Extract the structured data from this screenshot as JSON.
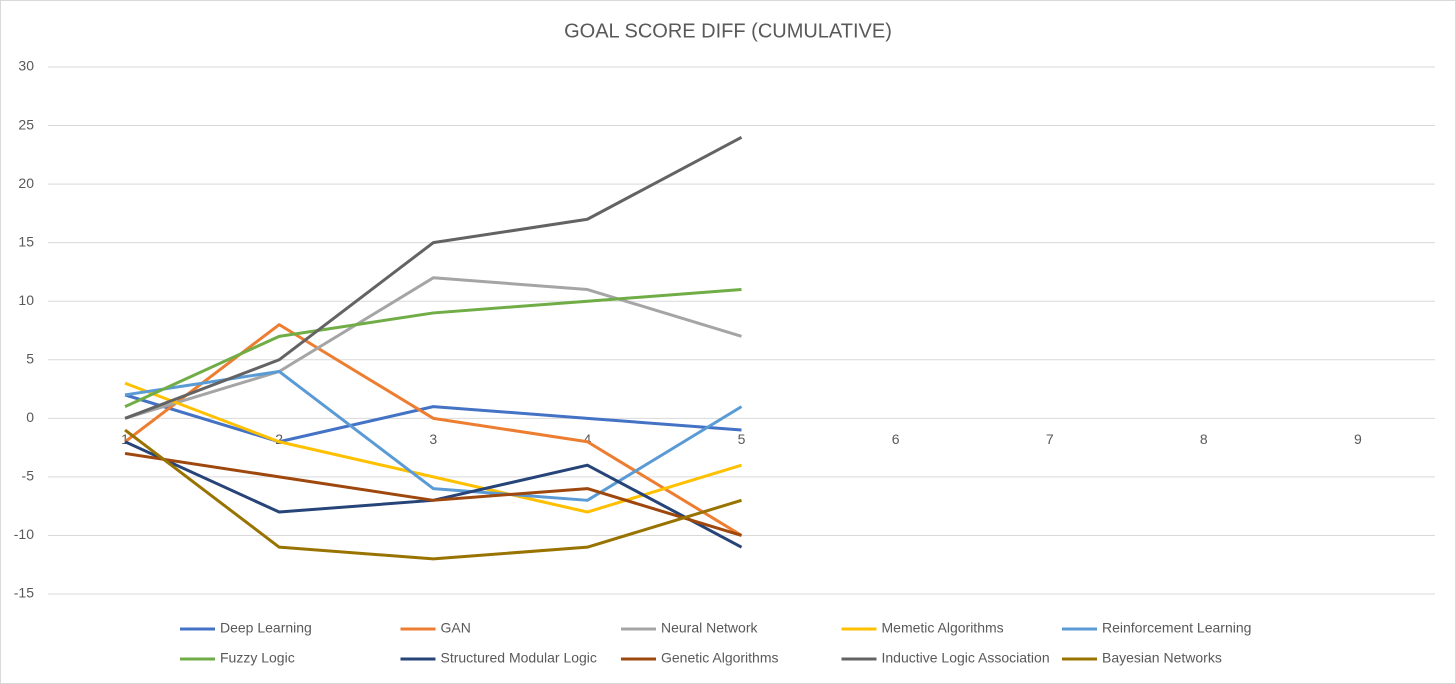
{
  "chart_data": {
    "type": "line",
    "title": "GOAL SCORE DIFF (CUMULATIVE)",
    "categories": [
      "1",
      "2",
      "3",
      "4",
      "5",
      "6",
      "7",
      "8",
      "9"
    ],
    "ylim": [
      -15,
      30
    ],
    "yticks": [
      -15,
      -10,
      -5,
      0,
      5,
      10,
      15,
      20,
      25,
      30
    ],
    "grid": true,
    "series": [
      {
        "name": "Deep Learning",
        "color": "#4472c4",
        "values": [
          2,
          -2,
          1,
          0,
          -1,
          null,
          null,
          null,
          null
        ]
      },
      {
        "name": "GAN",
        "color": "#ed7d31",
        "values": [
          -2,
          8,
          0,
          -2,
          -10,
          null,
          null,
          null,
          null
        ]
      },
      {
        "name": "Neural Network",
        "color": "#a5a5a5",
        "values": [
          0,
          4,
          12,
          11,
          7,
          null,
          null,
          null,
          null
        ]
      },
      {
        "name": "Memetic Algorithms",
        "color": "#ffc000",
        "values": [
          3,
          -2,
          -5,
          -8,
          -4,
          null,
          null,
          null,
          null
        ]
      },
      {
        "name": "Reinforcement Learning",
        "color": "#5b9bd5",
        "values": [
          2,
          4,
          -6,
          -7,
          1,
          null,
          null,
          null,
          null
        ]
      },
      {
        "name": "Fuzzy Logic",
        "color": "#70ad47",
        "values": [
          1,
          7,
          9,
          10,
          11,
          null,
          null,
          null,
          null
        ]
      },
      {
        "name": "Structured Modular Logic",
        "color": "#264478",
        "values": [
          -2,
          -8,
          -7,
          -4,
          -11,
          null,
          null,
          null,
          null
        ]
      },
      {
        "name": "Genetic Algorithms",
        "color": "#9e480e",
        "values": [
          -3,
          -5,
          -7,
          -6,
          -10,
          null,
          null,
          null,
          null
        ]
      },
      {
        "name": "Inductive Logic Association",
        "color": "#636363",
        "values": [
          0,
          5,
          15,
          17,
          24,
          null,
          null,
          null,
          null
        ]
      },
      {
        "name": "Bayesian Networks",
        "color": "#997300",
        "values": [
          -1,
          -11,
          -12,
          -11,
          -7,
          null,
          null,
          null,
          null
        ]
      }
    ]
  }
}
